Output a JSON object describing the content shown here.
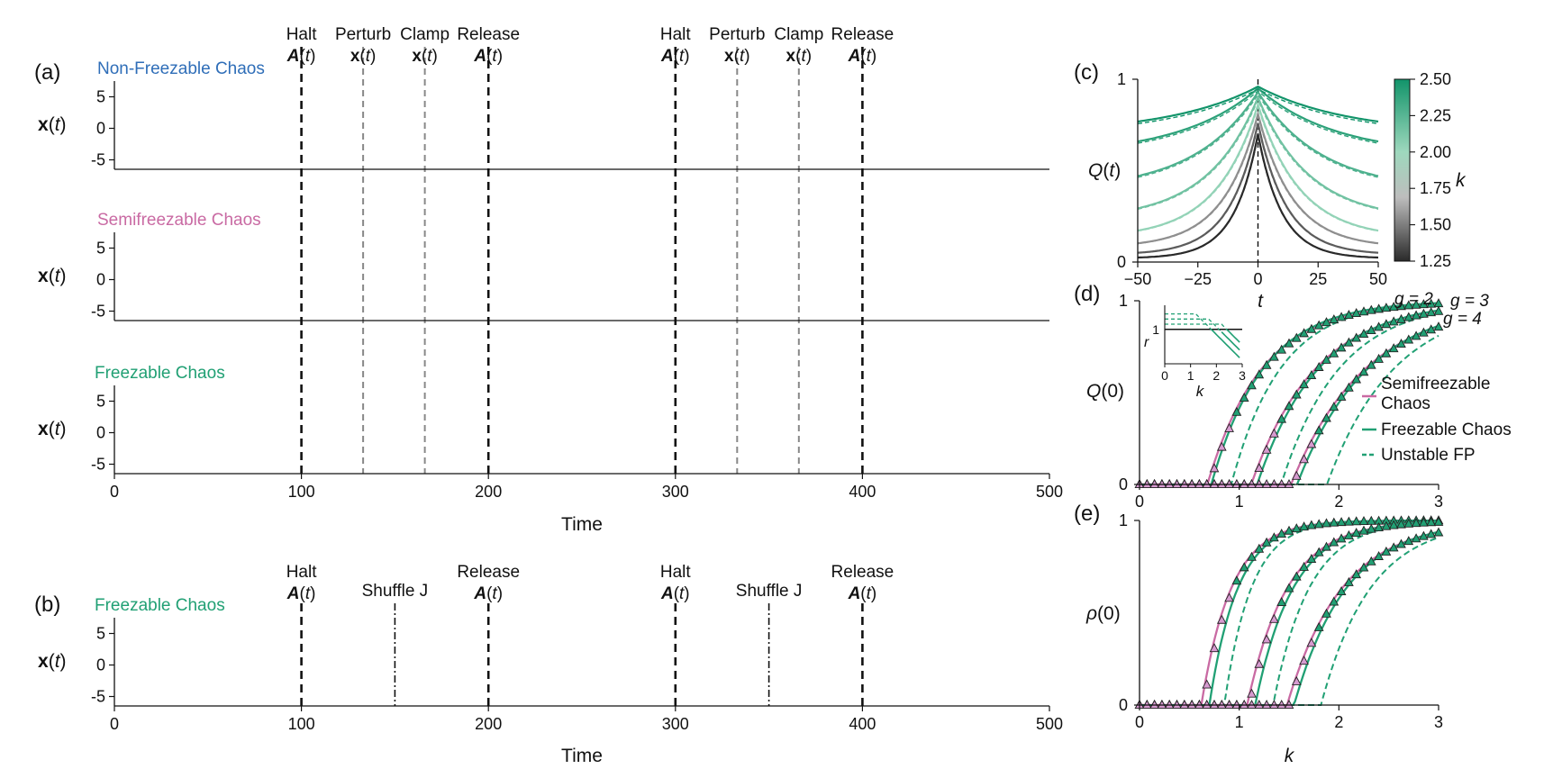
{
  "colors": {
    "blue": "#2f6eb8",
    "pink": "#c96aa3",
    "green": "#21a074",
    "triangle_fill": "#d79ad0",
    "dark": "#111111"
  },
  "chart_data": [
    {
      "id": "panel-a",
      "type": "line",
      "panel_label": "(a)",
      "xlabel": "Time",
      "xlim": [
        0,
        500
      ],
      "xticks": [
        "0",
        "100",
        "200",
        "300",
        "400",
        "500"
      ],
      "events": [
        {
          "t": 100,
          "line1": "Halt",
          "line2": "A(t)",
          "style": "black"
        },
        {
          "t": 133,
          "line1": "Perturb",
          "line2": "x(t)",
          "style": "gray"
        },
        {
          "t": 166,
          "line1": "Clamp",
          "line2": "x(t)",
          "style": "gray"
        },
        {
          "t": 200,
          "line1": "Release",
          "line2": "A(t)",
          "style": "black"
        },
        {
          "t": 300,
          "line1": "Halt",
          "line2": "A(t)",
          "style": "black"
        },
        {
          "t": 333,
          "line1": "Perturb",
          "line2": "x(t)",
          "style": "gray"
        },
        {
          "t": 366,
          "line1": "Clamp",
          "line2": "x(t)",
          "style": "gray"
        },
        {
          "t": 400,
          "line1": "Release",
          "line2": "A(t)",
          "style": "black"
        }
      ],
      "rows": [
        {
          "title": "Non-Freezable Chaos",
          "color_key": "blue",
          "mode": "nonfreezable",
          "ylabel": "x(t)",
          "yticks": [
            "5",
            "0",
            "-5"
          ],
          "ylim": [
            -6.5,
            7.5
          ]
        },
        {
          "title": "Semifreezable Chaos",
          "color_key": "pink",
          "mode": "semi",
          "ylabel": "x(t)",
          "yticks": [
            "5",
            "0",
            "-5"
          ],
          "ylim": [
            -6.5,
            7.5
          ]
        },
        {
          "title": "Freezable Chaos",
          "color_key": "green",
          "mode": "freeze",
          "ylabel": "x(t)",
          "yticks": [
            "5",
            "0",
            "-5"
          ],
          "ylim": [
            -6.5,
            7.5
          ]
        }
      ]
    },
    {
      "id": "panel-b",
      "type": "line",
      "panel_label": "(b)",
      "title": "Freezable Chaos",
      "xlabel": "Time",
      "ylabel": "x(t)",
      "xlim": [
        0,
        500
      ],
      "ylim": [
        -6.5,
        7.5
      ],
      "xticks": [
        "0",
        "100",
        "200",
        "300",
        "400",
        "500"
      ],
      "yticks": [
        "5",
        "0",
        "-5"
      ],
      "events": [
        {
          "t": 100,
          "line1": "Halt",
          "line2": "A(t)",
          "style": "black"
        },
        {
          "t": 150,
          "line1": "Shuffle J",
          "line2": "",
          "style": "dashdot"
        },
        {
          "t": 200,
          "line1": "Release",
          "line2": "A(t)",
          "style": "black"
        },
        {
          "t": 300,
          "line1": "Halt",
          "line2": "A(t)",
          "style": "black"
        },
        {
          "t": 350,
          "line1": "Shuffle J",
          "line2": "",
          "style": "dashdot"
        },
        {
          "t": 400,
          "line1": "Release",
          "line2": "A(t)",
          "style": "black"
        }
      ]
    },
    {
      "id": "panel-c",
      "type": "line",
      "panel_label": "(c)",
      "xlabel": "t",
      "ylabel": "Q(t)",
      "xlim": [
        -50,
        50
      ],
      "ylim": [
        0,
        1
      ],
      "xticks": [
        "−50",
        "−25",
        "0",
        "25",
        "50"
      ],
      "yticks": [
        "0",
        "1"
      ],
      "series": [
        {
          "k": 1.25,
          "peak": 0.7,
          "base": 0.02,
          "width": 16
        },
        {
          "k": 1.4,
          "peak": 0.76,
          "base": 0.04,
          "width": 19
        },
        {
          "k": 1.55,
          "peak": 0.81,
          "base": 0.08,
          "width": 23
        },
        {
          "k": 1.75,
          "peak": 0.86,
          "base": 0.13,
          "width": 28
        },
        {
          "k": 1.95,
          "peak": 0.9,
          "base": 0.23,
          "width": 34
        },
        {
          "k": 2.15,
          "peak": 0.93,
          "base": 0.39,
          "width": 42
        },
        {
          "k": 2.35,
          "peak": 0.95,
          "base": 0.58,
          "width": 52
        },
        {
          "k": 2.5,
          "peak": 0.96,
          "base": 0.7,
          "width": 60
        }
      ],
      "colorbar": {
        "label": "k",
        "ticks": [
          "2.50",
          "2.25",
          "2.00",
          "1.75",
          "1.50",
          "1.25"
        ],
        "range": [
          1.25,
          2.5
        ]
      }
    },
    {
      "id": "panel-d",
      "type": "line",
      "panel_label": "(d)",
      "xlabel": "",
      "ylabel": "Q(0)",
      "xlim": [
        0,
        3
      ],
      "ylim": [
        0,
        1
      ],
      "xticks": [
        "0",
        "1",
        "2",
        "3"
      ],
      "yticks": [
        "0",
        "1"
      ],
      "g_labels": [
        "g = 2",
        "g = 3",
        "g = 4"
      ],
      "curves": [
        {
          "g": 2,
          "k_semi": 0.68,
          "k_free": 0.72,
          "k_unstable": 0.92,
          "scale": 0.55
        },
        {
          "g": 3,
          "k_semi": 1.12,
          "k_free": 1.18,
          "k_unstable": 1.42,
          "scale": 0.65
        },
        {
          "g": 4,
          "k_semi": 1.52,
          "k_free": 1.58,
          "k_unstable": 1.88,
          "scale": 0.75
        }
      ],
      "legend": [
        {
          "label1": "Semifreezable",
          "label2": "Chaos",
          "style": "pink-solid"
        },
        {
          "label1": "Freezable  Chaos",
          "label2": "",
          "style": "green-solid"
        },
        {
          "label1": "Unstable FP",
          "label2": "",
          "style": "green-dashed"
        }
      ],
      "inset": {
        "xlabel": "k",
        "ylabel": "r",
        "xticks": [
          "0",
          "1",
          "2",
          "3"
        ],
        "ytick": "1",
        "xlim": [
          0,
          3
        ]
      }
    },
    {
      "id": "panel-e",
      "type": "line",
      "panel_label": "(e)",
      "xlabel": "k",
      "ylabel": "ρ(0)",
      "xlim": [
        0,
        3
      ],
      "ylim": [
        0,
        1
      ],
      "xticks": [
        "0",
        "1",
        "2",
        "3"
      ],
      "yticks": [
        "0",
        "1"
      ],
      "curves": [
        {
          "g": 2,
          "k_semi": 0.62,
          "k_free": 0.7,
          "k_unstable": 0.85,
          "scale": 0.3
        },
        {
          "g": 3,
          "k_semi": 1.08,
          "k_free": 1.16,
          "k_unstable": 1.34,
          "scale": 0.4
        },
        {
          "g": 4,
          "k_semi": 1.48,
          "k_free": 1.55,
          "k_unstable": 1.82,
          "scale": 0.55
        }
      ]
    }
  ]
}
